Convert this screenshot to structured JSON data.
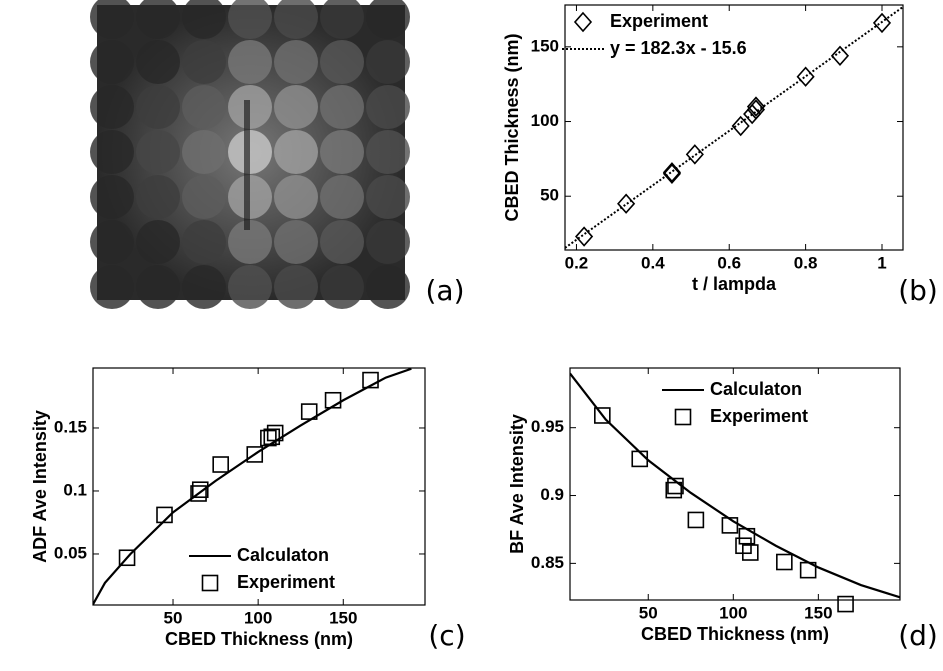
{
  "image_panel": {
    "label": "(a)"
  },
  "chart_data": [
    {
      "type": "scatter",
      "label": "(b)",
      "xlabel": "t / lampda",
      "ylabel": "CBED Thickness (nm)",
      "xlim": [
        0.17,
        1.055
      ],
      "ylim": [
        14,
        178
      ],
      "xticks": [
        0.2,
        0.4,
        0.6,
        0.8,
        1
      ],
      "yticks": [
        50,
        100,
        150
      ],
      "legend": "upper left",
      "series": [
        {
          "name": "Experiment",
          "type": "scatter",
          "marker": "diamond",
          "color": "#000000",
          "x": [
            0.22,
            0.33,
            0.45,
            0.45,
            0.51,
            0.63,
            0.66,
            0.67,
            0.67,
            0.8,
            0.89,
            1.0
          ],
          "values": [
            23,
            45,
            65,
            66,
            78,
            97,
            105,
            108,
            110,
            130,
            144,
            166
          ]
        },
        {
          "name": "y = 182.3x - 15.6",
          "type": "line",
          "style": "dotted",
          "color": "#000000",
          "x": [
            0.17,
            1.055
          ],
          "values": [
            15.4,
            176.7
          ]
        }
      ]
    },
    {
      "type": "scatter",
      "label": "(c)",
      "xlabel": "CBED Thickness (nm)",
      "ylabel": "ADF Ave Intensity",
      "xlim": [
        3,
        198
      ],
      "ylim": [
        0.0095,
        0.1976
      ],
      "xticks": [
        50,
        100,
        150
      ],
      "yticks": [
        0.05,
        0.1,
        0.15
      ],
      "legend": "lower right",
      "series": [
        {
          "name": "Calculaton",
          "type": "line",
          "style": "solid",
          "color": "#000000",
          "x": [
            3,
            10,
            25,
            50,
            75,
            100,
            125,
            150,
            175,
            190
          ],
          "values": [
            0.01,
            0.027,
            0.05,
            0.083,
            0.108,
            0.131,
            0.152,
            0.172,
            0.19,
            0.197
          ]
        },
        {
          "name": "Experiment",
          "type": "scatter",
          "marker": "square",
          "color": "#000000",
          "x": [
            23,
            45,
            65,
            66,
            78,
            98,
            106,
            108,
            110,
            130,
            144,
            166
          ],
          "values": [
            0.047,
            0.081,
            0.098,
            0.101,
            0.121,
            0.129,
            0.142,
            0.143,
            0.146,
            0.163,
            0.172,
            0.188
          ]
        }
      ]
    },
    {
      "type": "scatter",
      "label": "(d)",
      "xlabel": "CBED Thickness (nm)",
      "ylabel": "BF Ave Intensity",
      "xlim": [
        4,
        198
      ],
      "ylim": [
        0.823,
        0.994
      ],
      "xticks": [
        50,
        100,
        150
      ],
      "yticks": [
        0.85,
        0.9,
        0.95
      ],
      "legend": "upper right",
      "series": [
        {
          "name": "Calculaton",
          "type": "line",
          "style": "solid",
          "color": "#000000",
          "x": [
            4,
            25,
            50,
            75,
            100,
            125,
            150,
            175,
            198
          ],
          "values": [
            0.99,
            0.956,
            0.926,
            0.902,
            0.881,
            0.863,
            0.847,
            0.834,
            0.825
          ]
        },
        {
          "name": "Experiment",
          "type": "scatter",
          "marker": "square",
          "color": "#000000",
          "x": [
            23,
            45,
            65,
            66,
            78,
            98,
            106,
            108,
            110,
            130,
            144,
            166
          ],
          "values": [
            0.959,
            0.927,
            0.904,
            0.907,
            0.882,
            0.878,
            0.863,
            0.87,
            0.858,
            0.851,
            0.845,
            0.82
          ]
        }
      ]
    }
  ]
}
